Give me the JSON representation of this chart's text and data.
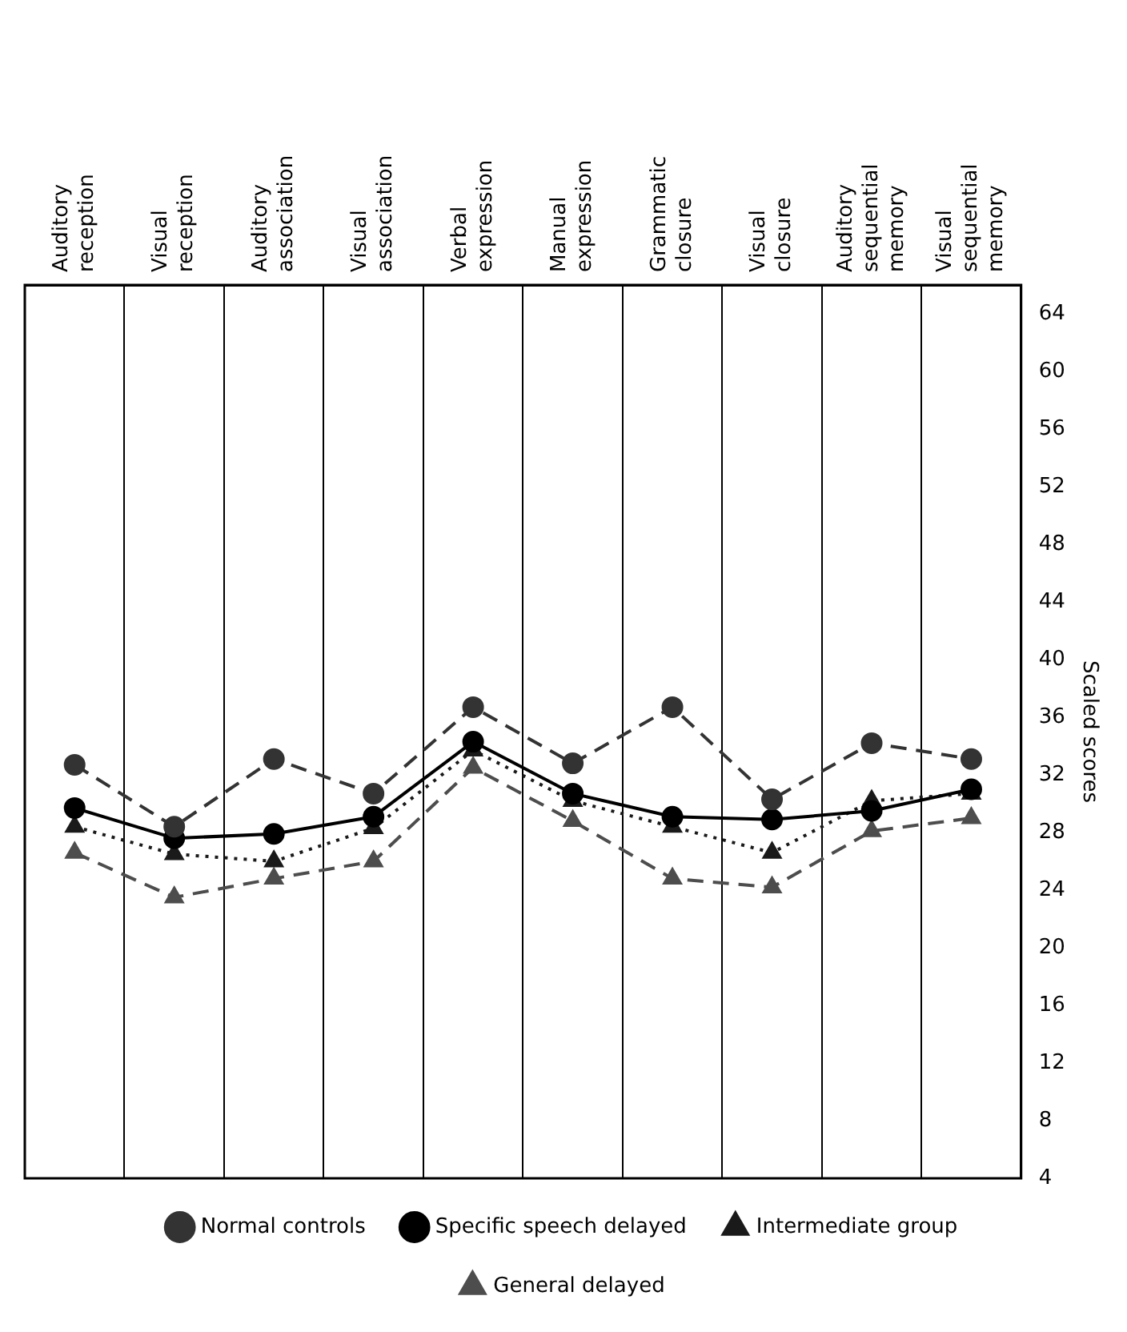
{
  "chart_data": {
    "type": "line",
    "ylabel": "Scaled scores",
    "categories": [
      "Auditory reception",
      "Visual reception",
      "Auditory association",
      "Visual association",
      "Verbal expression",
      "Manual expression",
      "Grammatic closure",
      "Visual closure",
      "Auditory sequential memory",
      "Visual sequential memory"
    ],
    "series": [
      {
        "name": "Normal controls",
        "color": "#333333",
        "marker": "circle",
        "line_style": "dashed",
        "values": [
          32.7,
          28.4,
          33.1,
          30.7,
          36.7,
          32.8,
          36.7,
          30.3,
          34.2,
          33.1
        ]
      },
      {
        "name": "Specific speech delayed",
        "color": "#000000",
        "marker": "circle",
        "line_style": "solid",
        "values": [
          29.7,
          27.6,
          27.9,
          29.1,
          34.3,
          30.7,
          29.1,
          28.9,
          29.5,
          31.0
        ]
      },
      {
        "name": "Intermediate group",
        "color": "#1a1a1a",
        "marker": "triangle",
        "line_style": "dotted",
        "values": [
          28.4,
          26.5,
          26.0,
          28.3,
          33.7,
          30.2,
          28.4,
          26.6,
          30.2,
          30.7
        ]
      },
      {
        "name": "General delayed",
        "color": "#4d4d4d",
        "marker": "triangle",
        "line_style": "dashed",
        "values": [
          26.6,
          23.5,
          24.8,
          26.0,
          32.5,
          28.8,
          24.8,
          24.2,
          28.1,
          29.0
        ]
      }
    ],
    "ylim": [
      4,
      66
    ],
    "yticks": [
      4,
      8,
      12,
      16,
      20,
      24,
      28,
      32,
      36,
      40,
      44,
      48,
      52,
      56,
      60,
      64
    ],
    "grid": "x",
    "legend": "bottom"
  }
}
